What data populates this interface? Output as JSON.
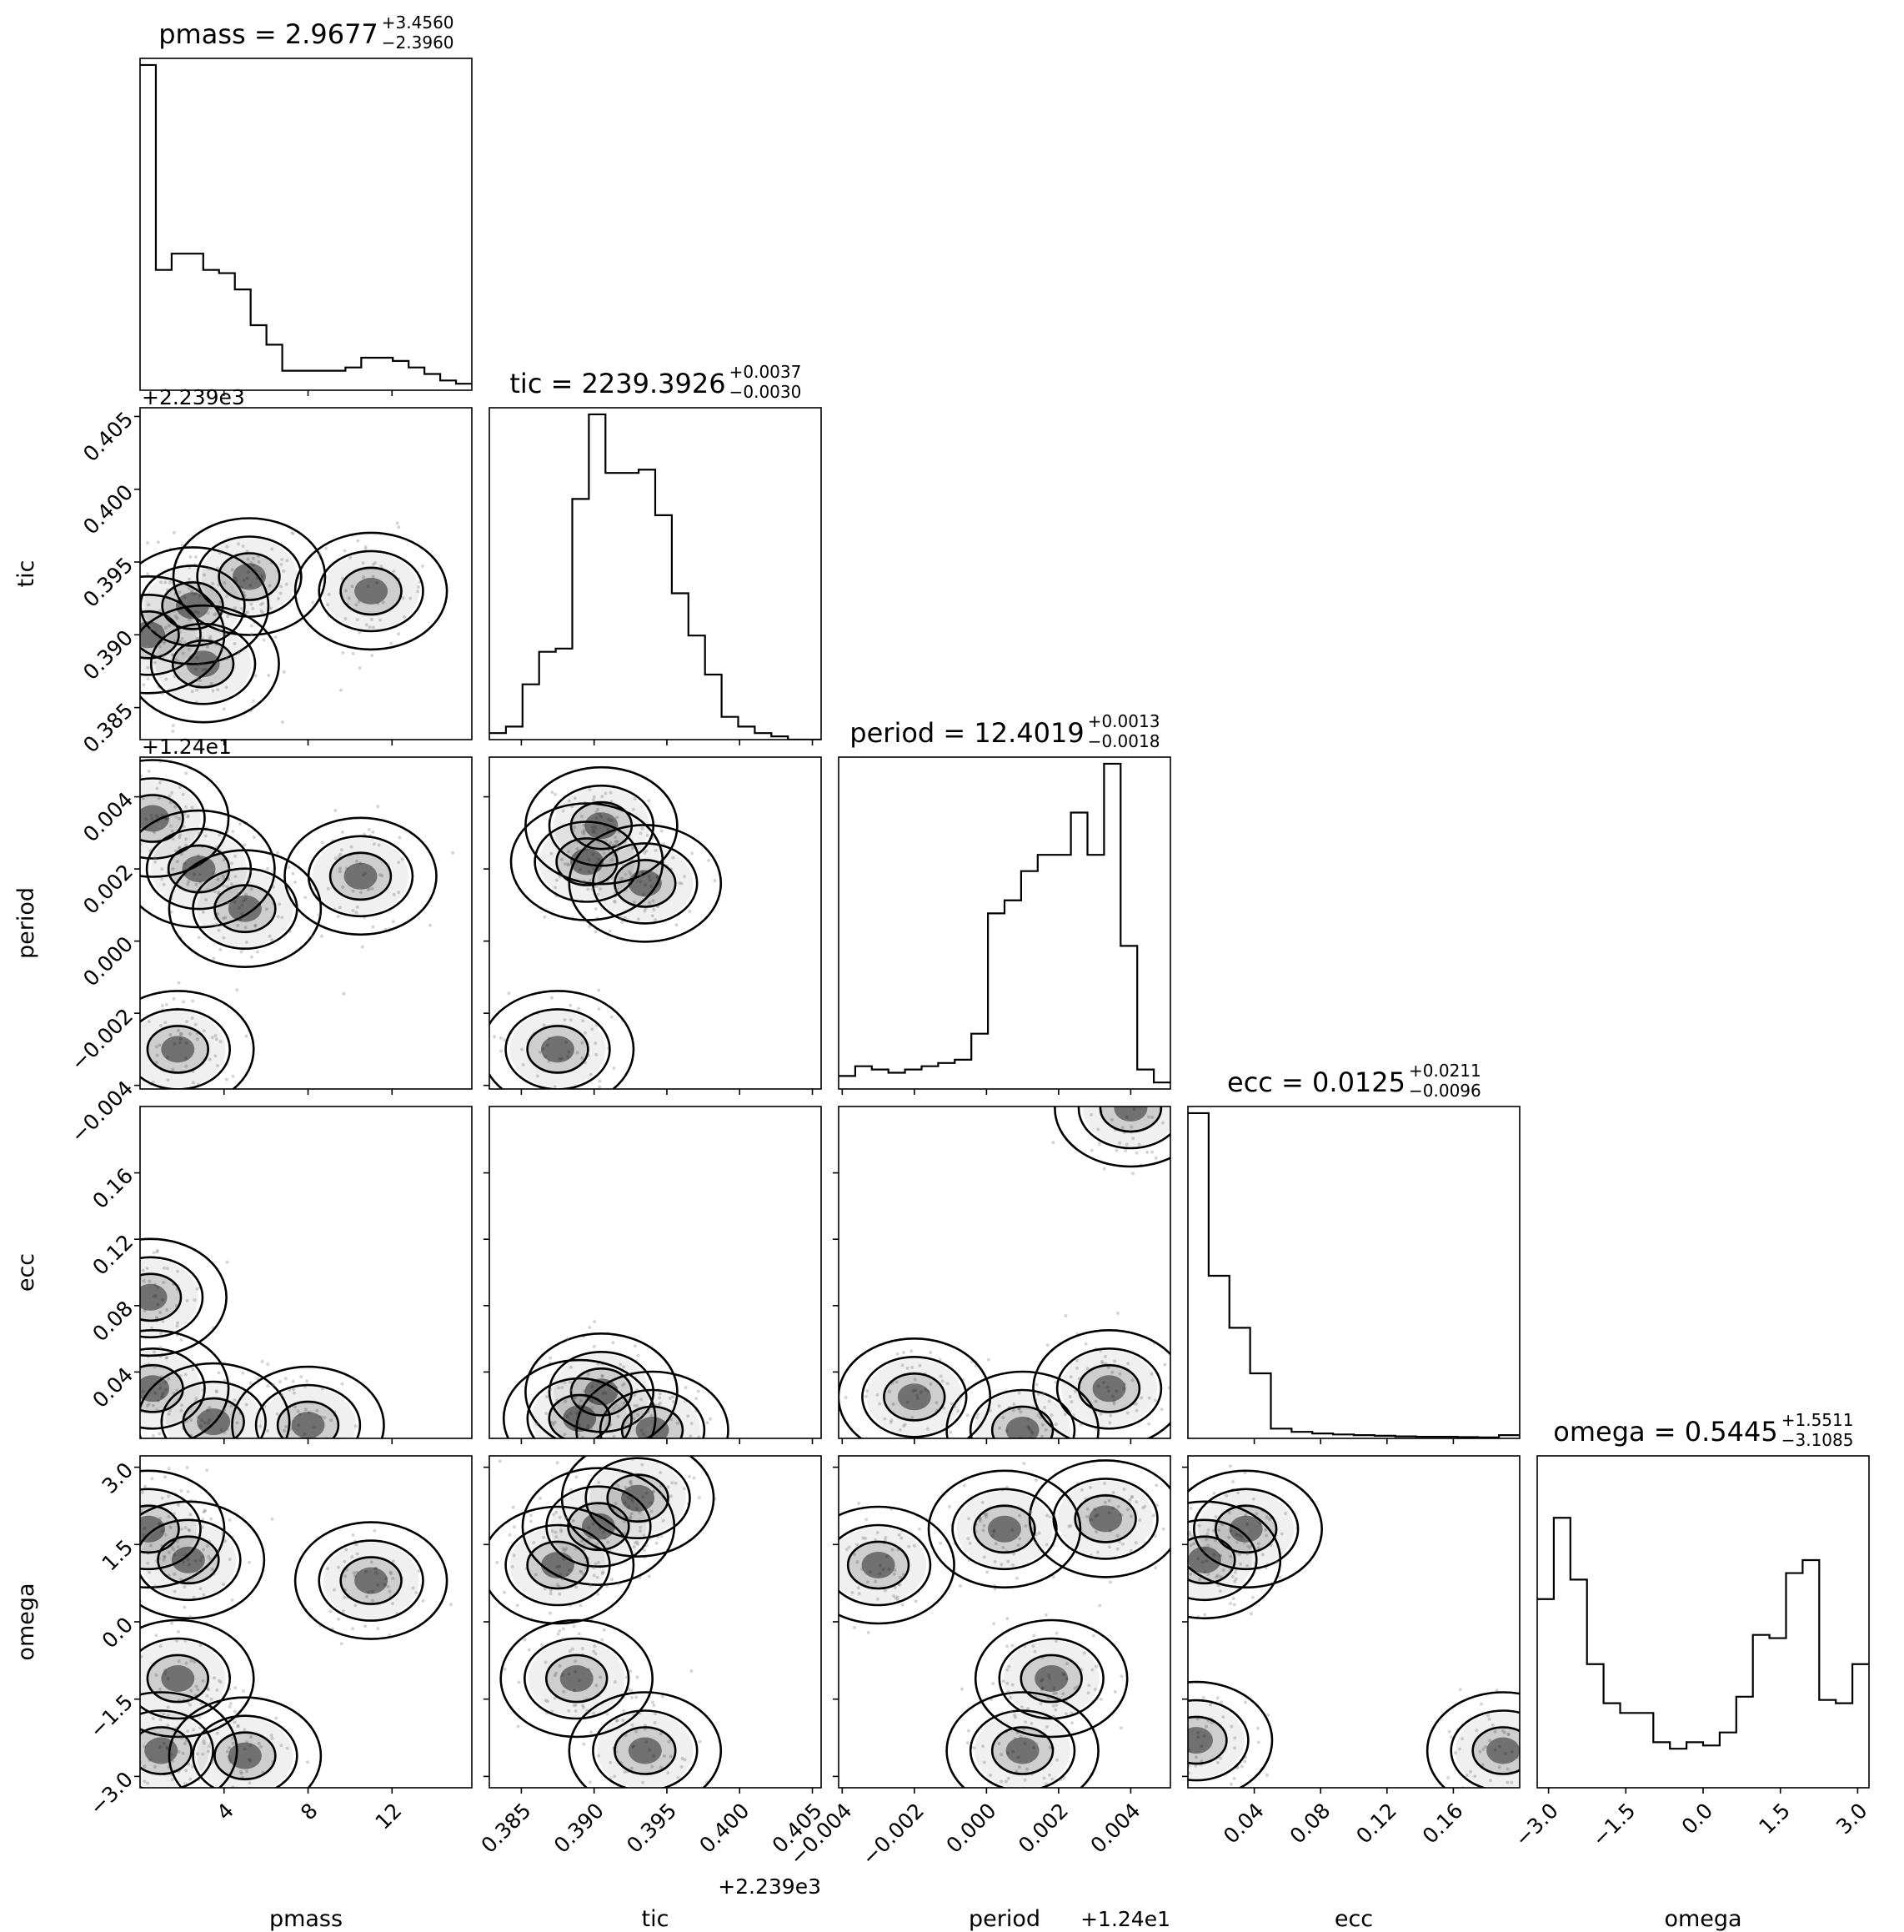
{
  "chart_data": {
    "type": "corner",
    "parameters": [
      "pmass",
      "tic",
      "period",
      "ecc",
      "omega"
    ],
    "titles": [
      {
        "param": "pmass",
        "name": "pmass",
        "median": "2.9677",
        "plus": "+3.4560",
        "minus": "−2.3960"
      },
      {
        "param": "tic",
        "name": "tic",
        "median": "2239.3926",
        "plus": "+0.0037",
        "minus": "−0.0030"
      },
      {
        "param": "period",
        "name": "period",
        "median": "12.4019",
        "plus": "+0.0013",
        "minus": "−0.0018"
      },
      {
        "param": "ecc",
        "name": "ecc",
        "median": "0.0125",
        "plus": "+0.0211",
        "minus": "−0.0096"
      },
      {
        "param": "omega",
        "name": "omega",
        "median": "0.5445",
        "plus": "+1.5511",
        "minus": "−3.1085"
      }
    ],
    "ranges": {
      "pmass": [
        0.0,
        15.8
      ],
      "tic": [
        0.3828,
        0.4056
      ],
      "period": [
        -0.0041,
        0.0051
      ],
      "ecc": [
        0.0,
        0.2
      ],
      "omega": [
        -3.22,
        3.22
      ]
    },
    "ticks": {
      "pmass": {
        "values": [
          4,
          8,
          12
        ],
        "labels": [
          "4",
          "8",
          "12"
        ]
      },
      "tic": {
        "values": [
          0.385,
          0.39,
          0.395,
          0.4,
          0.405
        ],
        "labels": [
          "0.385",
          "0.390",
          "0.395",
          "0.400",
          "0.405"
        ]
      },
      "period": {
        "values": [
          -0.004,
          -0.002,
          0.0,
          0.002,
          0.004
        ],
        "labels": [
          "−0.004",
          "−0.002",
          "0.000",
          "0.002",
          "0.004"
        ]
      },
      "ecc": {
        "values": [
          0.04,
          0.08,
          0.12,
          0.16
        ],
        "labels": [
          "0.04",
          "0.08",
          "0.12",
          "0.16"
        ]
      },
      "omega": {
        "values": [
          -3.0,
          -1.5,
          0.0,
          1.5,
          3.0
        ],
        "labels": [
          "−3.0",
          "−1.5",
          "0.0",
          "1.5",
          "3.0"
        ]
      }
    },
    "offsets": {
      "tic": "+2.239e3",
      "period": "+1.24e1"
    },
    "histograms": {
      "pmass": [
        1.0,
        0.37,
        0.42,
        0.42,
        0.37,
        0.36,
        0.31,
        0.2,
        0.14,
        0.06,
        0.06,
        0.06,
        0.06,
        0.07,
        0.1,
        0.1,
        0.09,
        0.07,
        0.05,
        0.03,
        0.02
      ],
      "tic": [
        0.02,
        0.04,
        0.17,
        0.27,
        0.28,
        0.74,
        1.0,
        0.82,
        0.82,
        0.83,
        0.69,
        0.45,
        0.32,
        0.2,
        0.07,
        0.04,
        0.02,
        0.01,
        0.0,
        0.0
      ],
      "period": [
        0.04,
        0.07,
        0.06,
        0.05,
        0.06,
        0.07,
        0.08,
        0.09,
        0.17,
        0.54,
        0.58,
        0.67,
        0.72,
        0.72,
        0.85,
        0.72,
        1.0,
        0.44,
        0.06,
        0.02
      ],
      "ecc": [
        1.0,
        0.5,
        0.34,
        0.2,
        0.03,
        0.02,
        0.015,
        0.012,
        0.01,
        0.008,
        0.006,
        0.005,
        0.005,
        0.004,
        0.003,
        0.01
      ],
      "omega": [
        0.58,
        0.83,
        0.64,
        0.38,
        0.26,
        0.23,
        0.23,
        0.14,
        0.12,
        0.14,
        0.13,
        0.17,
        0.28,
        0.47,
        0.46,
        0.66,
        0.7,
        0.27,
        0.26,
        0.38
      ]
    },
    "density_centers": {
      "tic_vs_pmass": [
        [
          0.4,
          0.39
        ],
        [
          2.5,
          0.392
        ],
        [
          5.2,
          0.394
        ],
        [
          3.0,
          0.388
        ],
        [
          11.0,
          0.393
        ]
      ],
      "period_vs_pmass": [
        [
          0.6,
          0.0034
        ],
        [
          2.8,
          0.002
        ],
        [
          5.0,
          0.0009
        ],
        [
          10.5,
          0.0018
        ],
        [
          1.8,
          -0.003
        ]
      ],
      "period_vs_tic": [
        [
          0.3905,
          0.0032
        ],
        [
          0.3935,
          0.0016
        ],
        [
          0.3895,
          0.0022
        ],
        [
          0.3875,
          -0.003
        ]
      ],
      "ecc_vs_pmass": [
        [
          0.6,
          0.03
        ],
        [
          3.5,
          0.01
        ],
        [
          0.5,
          0.085
        ],
        [
          8.0,
          0.008
        ]
      ],
      "ecc_vs_tic": [
        [
          0.3905,
          0.028
        ],
        [
          0.394,
          0.005
        ],
        [
          0.389,
          0.012
        ]
      ],
      "ecc_vs_period": [
        [
          0.001,
          0.005
        ],
        [
          0.0034,
          0.03
        ],
        [
          0.004,
          0.199
        ],
        [
          -0.002,
          0.025
        ]
      ],
      "omega_vs_pmass": [
        [
          0.4,
          1.8
        ],
        [
          2.3,
          1.2
        ],
        [
          1.8,
          -1.1
        ],
        [
          1.0,
          -2.5
        ],
        [
          5.0,
          -2.6
        ],
        [
          11.0,
          0.8
        ]
      ],
      "omega_vs_tic": [
        [
          0.3903,
          1.85
        ],
        [
          0.393,
          2.4
        ],
        [
          0.3935,
          -2.5
        ],
        [
          0.3888,
          -1.1
        ],
        [
          0.3875,
          1.1
        ]
      ],
      "omega_vs_period": [
        [
          0.0033,
          2.0
        ],
        [
          -0.003,
          1.1
        ],
        [
          0.001,
          -2.5
        ],
        [
          0.0018,
          -1.1
        ],
        [
          0.0005,
          1.8
        ]
      ],
      "omega_vs_ecc": [
        [
          0.035,
          1.8
        ],
        [
          0.005,
          -2.3
        ],
        [
          0.01,
          1.2
        ],
        [
          0.19,
          -2.5
        ]
      ]
    }
  }
}
